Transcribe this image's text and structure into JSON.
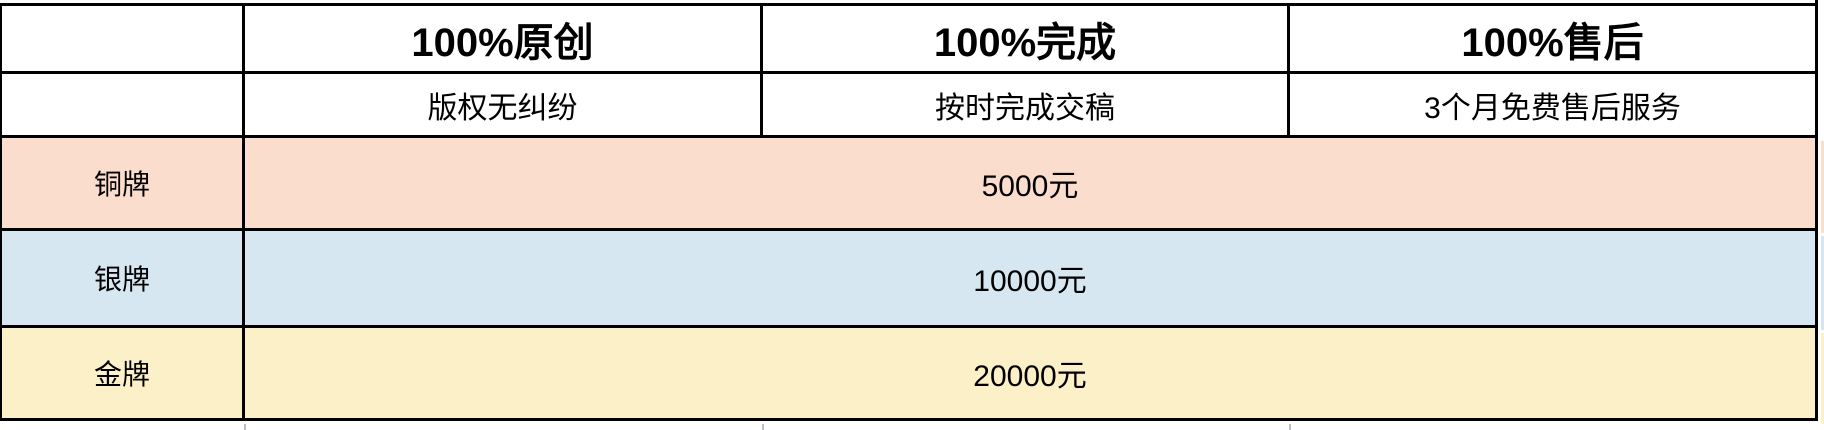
{
  "table": {
    "corner": "",
    "columns": [
      {
        "title": "100%原创",
        "subtitle": "版权无纠纷"
      },
      {
        "title": "100%完成",
        "subtitle": "按时完成交稿"
      },
      {
        "title": "100%售后",
        "subtitle": "3个月免费售后服务"
      }
    ],
    "tiers": [
      {
        "label": "铜牌",
        "price": "5000元",
        "row_color": "#fbddcd"
      },
      {
        "label": "银牌",
        "price": "10000元",
        "row_color": "#d7e7f2"
      },
      {
        "label": "金牌",
        "price": "20000元",
        "row_color": "#fbf0c7"
      }
    ],
    "style": {
      "border_color": "#000000",
      "header_text_color": "#000000",
      "body_text_color": "#111111",
      "background": "#ffffff"
    }
  }
}
